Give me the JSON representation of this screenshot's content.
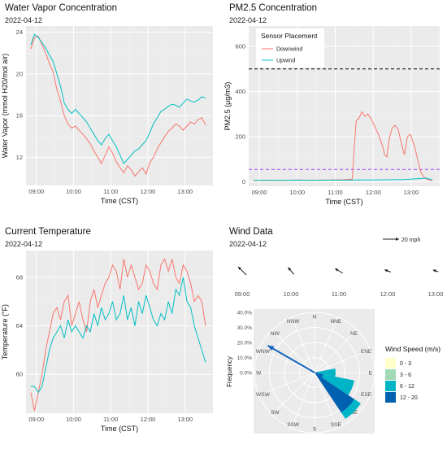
{
  "colors": {
    "downwind": "#F8766D",
    "upwind": "#00BFC4",
    "wind_arrow": "#1565C0",
    "panel_bg": "#EBEBEB",
    "grid_major": "#FFFFFF",
    "grid_minor": "#F4F4F4",
    "hline_black": "#000000",
    "hline_purple": "#A64DFF"
  },
  "chart_data": [
    {
      "id": "water",
      "type": "line",
      "title": "Water Vapor Concentration",
      "subtitle": "2022-04-12",
      "xlabel": "Time (CST)",
      "ylabel": "Water Vapor (mmol H20/mol air)",
      "x_ticks": [
        "09:00",
        "10:00",
        "11:00",
        "12:00",
        "13:00"
      ],
      "x_tick_hours": [
        9,
        10,
        11,
        12,
        13
      ],
      "xlim_hours": [
        8.72,
        13.75
      ],
      "y_ticks": [
        12,
        16,
        20,
        24
      ],
      "ylim": [
        9.3,
        24.6
      ],
      "series": [
        {
          "name": "Downwind",
          "color": "downwind",
          "x_hours": [
            8.85,
            8.95,
            9.05,
            9.15,
            9.25,
            9.35,
            9.45,
            9.55,
            9.65,
            9.75,
            9.85,
            9.95,
            10.05,
            10.15,
            10.25,
            10.35,
            10.45,
            10.55,
            10.65,
            10.75,
            10.85,
            10.95,
            11.05,
            11.15,
            11.25,
            11.35,
            11.45,
            11.55,
            11.65,
            11.75,
            11.85,
            11.95,
            12.05,
            12.15,
            12.25,
            12.35,
            12.45,
            12.55,
            12.65,
            12.75,
            12.85,
            12.95,
            13.05,
            13.15,
            13.25,
            13.35,
            13.45,
            13.55
          ],
          "values": [
            22.4,
            23.5,
            23.6,
            22.8,
            22.0,
            21.0,
            20.2,
            18.5,
            17.4,
            16.0,
            15.2,
            14.8,
            15.0,
            14.6,
            14.2,
            13.8,
            13.3,
            12.6,
            12.0,
            11.4,
            12.2,
            13.0,
            12.4,
            11.6,
            11.0,
            10.5,
            11.2,
            10.8,
            10.2,
            10.6,
            11.0,
            10.4,
            11.5,
            12.0,
            12.8,
            13.4,
            14.0,
            14.5,
            14.8,
            15.2,
            15.0,
            14.6,
            15.0,
            15.4,
            15.2,
            15.6,
            15.8,
            15.1
          ]
        },
        {
          "name": "Upwind",
          "color": "upwind",
          "x_hours": [
            8.85,
            8.95,
            9.05,
            9.15,
            9.25,
            9.35,
            9.45,
            9.55,
            9.65,
            9.75,
            9.85,
            9.95,
            10.05,
            10.15,
            10.25,
            10.35,
            10.45,
            10.55,
            10.65,
            10.75,
            10.85,
            10.95,
            11.05,
            11.15,
            11.25,
            11.35,
            11.45,
            11.55,
            11.65,
            11.75,
            11.85,
            11.95,
            12.05,
            12.15,
            12.25,
            12.35,
            12.45,
            12.55,
            12.65,
            12.75,
            12.85,
            12.95,
            13.05,
            13.15,
            13.25,
            13.35,
            13.45,
            13.55
          ],
          "values": [
            22.8,
            23.8,
            23.5,
            23.0,
            22.5,
            21.8,
            21.2,
            20.0,
            18.8,
            17.2,
            16.6,
            16.2,
            16.6,
            16.2,
            15.8,
            15.4,
            14.8,
            14.2,
            13.6,
            13.2,
            13.8,
            14.2,
            13.6,
            13.0,
            12.2,
            11.4,
            11.8,
            12.2,
            12.6,
            12.8,
            13.2,
            13.6,
            14.4,
            15.2,
            15.8,
            16.4,
            16.6,
            16.9,
            17.1,
            17.0,
            16.8,
            17.2,
            17.6,
            17.4,
            17.3,
            17.5,
            17.8,
            17.7
          ]
        }
      ]
    },
    {
      "id": "pm25",
      "type": "line",
      "title": "PM2.5 Concentration",
      "subtitle": "2022-04-12",
      "xlabel": "Time (CST)",
      "ylabel": "PM2.5 (µg/m3)",
      "x_ticks": [
        "09:00",
        "10:00",
        "11:00",
        "12:00",
        "13:00"
      ],
      "x_tick_hours": [
        9,
        10,
        11,
        12,
        13
      ],
      "xlim_hours": [
        8.72,
        13.75
      ],
      "y_ticks": [
        0,
        200,
        400,
        600
      ],
      "ylim": [
        -20,
        690
      ],
      "hlines": [
        {
          "value": 500,
          "color": "hline_black"
        },
        {
          "value": 55,
          "color": "hline_purple"
        }
      ],
      "legend": {
        "title": "Sensor Placement",
        "position": "top-left"
      },
      "series": [
        {
          "name": "Downwind",
          "color": "downwind",
          "x_hours": [
            8.85,
            9.2,
            9.6,
            10.0,
            10.4,
            10.8,
            11.2,
            11.45,
            11.5,
            11.55,
            11.62,
            11.7,
            11.78,
            11.86,
            11.94,
            12.0,
            12.08,
            12.16,
            12.24,
            12.3,
            12.36,
            12.42,
            12.5,
            12.58,
            12.66,
            12.74,
            12.82,
            12.9,
            12.98,
            13.04,
            13.1,
            13.18,
            13.26,
            13.34,
            13.42,
            13.5,
            13.56
          ],
          "values": [
            6,
            7,
            6,
            8,
            7,
            8,
            9,
            12,
            150,
            270,
            280,
            310,
            290,
            300,
            280,
            260,
            230,
            200,
            160,
            120,
            110,
            190,
            240,
            250,
            230,
            170,
            120,
            200,
            210,
            180,
            150,
            90,
            40,
            20,
            10,
            8,
            6
          ]
        },
        {
          "name": "Upwind",
          "color": "upwind",
          "x_hours": [
            8.85,
            9.2,
            9.6,
            10.0,
            10.4,
            10.8,
            11.2,
            11.6,
            12.0,
            12.4,
            12.8,
            13.2,
            13.4,
            13.56
          ],
          "values": [
            6,
            6,
            6,
            7,
            6,
            7,
            7,
            8,
            8,
            9,
            10,
            14,
            16,
            8
          ]
        }
      ]
    },
    {
      "id": "temp",
      "type": "line",
      "title": "Current Temperature",
      "subtitle": "2022-04-12",
      "xlabel": "Time (CST)",
      "ylabel": "Temperature (°F)",
      "x_ticks": [
        "09:00",
        "10:00",
        "11:00",
        "12:00",
        "13:00"
      ],
      "x_tick_hours": [
        9,
        10,
        11,
        12,
        13
      ],
      "xlim_hours": [
        8.72,
        13.75
      ],
      "y_ticks": [
        60,
        64,
        68
      ],
      "ylim": [
        56.8,
        70.2
      ],
      "series": [
        {
          "name": "Downwind",
          "color": "downwind",
          "x_hours": [
            8.85,
            8.95,
            9.05,
            9.15,
            9.25,
            9.35,
            9.45,
            9.55,
            9.65,
            9.75,
            9.85,
            9.95,
            10.05,
            10.15,
            10.25,
            10.35,
            10.45,
            10.55,
            10.65,
            10.75,
            10.85,
            10.95,
            11.05,
            11.15,
            11.25,
            11.35,
            11.45,
            11.55,
            11.65,
            11.75,
            11.85,
            11.95,
            12.05,
            12.15,
            12.25,
            12.35,
            12.45,
            12.55,
            12.65,
            12.75,
            12.85,
            12.95,
            13.05,
            13.15,
            13.25,
            13.35,
            13.45,
            13.55
          ],
          "values": [
            58.5,
            57.0,
            58.5,
            60.0,
            62.0,
            63.5,
            65.0,
            65.5,
            64.5,
            66.0,
            66.5,
            64.0,
            65.0,
            66.0,
            64.5,
            63.5,
            66.0,
            67.0,
            65.5,
            66.5,
            67.5,
            68.0,
            69.0,
            68.5,
            67.0,
            69.5,
            68.0,
            69.0,
            68.0,
            67.0,
            67.5,
            69.0,
            68.5,
            67.5,
            67.0,
            69.0,
            69.5,
            68.5,
            69.5,
            68.0,
            67.5,
            69.0,
            68.5,
            67.5,
            66.0,
            66.5,
            66.0,
            64.0
          ]
        },
        {
          "name": "Upwind",
          "color": "upwind",
          "x_hours": [
            8.85,
            8.95,
            9.05,
            9.15,
            9.25,
            9.35,
            9.45,
            9.55,
            9.65,
            9.75,
            9.85,
            9.95,
            10.05,
            10.15,
            10.25,
            10.35,
            10.45,
            10.55,
            10.65,
            10.75,
            10.85,
            10.95,
            11.05,
            11.15,
            11.25,
            11.35,
            11.45,
            11.55,
            11.65,
            11.75,
            11.85,
            11.95,
            12.05,
            12.15,
            12.25,
            12.35,
            12.45,
            12.55,
            12.65,
            12.75,
            12.85,
            12.95,
            13.05,
            13.15,
            13.25,
            13.35,
            13.45,
            13.55
          ],
          "values": [
            59.0,
            59.0,
            58.5,
            59.0,
            60.5,
            62.0,
            63.0,
            63.5,
            64.0,
            63.0,
            64.5,
            63.5,
            64.0,
            63.5,
            63.0,
            64.0,
            63.5,
            65.0,
            64.0,
            65.5,
            64.5,
            65.0,
            66.0,
            64.5,
            65.0,
            66.5,
            64.5,
            65.5,
            64.0,
            66.0,
            65.0,
            66.5,
            65.5,
            64.5,
            64.0,
            65.0,
            64.5,
            66.0,
            65.0,
            67.0,
            66.5,
            68.0,
            66.0,
            65.5,
            64.0,
            63.0,
            62.0,
            61.0
          ]
        }
      ]
    },
    {
      "id": "wind",
      "type": "other",
      "title": "Wind Data",
      "subtitle": "2022-04-12",
      "scale_label": "20 mph",
      "times": [
        "09:00",
        "10:00",
        "11:00",
        "12:00",
        "13:00"
      ],
      "arrows": [
        {
          "time": "09:00",
          "toward_deg": 315,
          "speed_mph": 14
        },
        {
          "time": "10:00",
          "toward_deg": 320,
          "speed_mph": 11
        },
        {
          "time": "11:00",
          "toward_deg": 300,
          "speed_mph": 11
        },
        {
          "time": "12:00",
          "toward_deg": 290,
          "speed_mph": 8
        },
        {
          "time": "13:00",
          "toward_deg": 290,
          "speed_mph": 7
        }
      ],
      "rose": {
        "ylabel": "Frequency",
        "directions": [
          "N",
          "NNE",
          "NE",
          "ENE",
          "E",
          "ESE",
          "SE",
          "SSE",
          "S",
          "SSW",
          "SW",
          "WSW",
          "W",
          "WNW",
          "NW",
          "NNW"
        ],
        "radial_ticks": [
          "0.0%",
          "10.0%",
          "20.0%",
          "30.0%",
          "40.0%"
        ],
        "radial_values": [
          0,
          10,
          20,
          30,
          40
        ],
        "wedges": [
          {
            "direction": "E",
            "bin": "12 - 20",
            "from": 0,
            "to": 2
          },
          {
            "direction": "E",
            "bin": "6 - 12",
            "from": 2,
            "to": 14
          },
          {
            "direction": "ESE",
            "bin": "12 - 20",
            "from": 0,
            "to": 6
          },
          {
            "direction": "ESE",
            "bin": "6 - 12",
            "from": 6,
            "to": 27
          },
          {
            "direction": "SE",
            "bin": "12 - 20",
            "from": 0,
            "to": 32
          },
          {
            "direction": "SE",
            "bin": "6 - 12",
            "from": 32,
            "to": 37
          }
        ],
        "mean_direction_arrow": {
          "toward_deg": 300,
          "magnitude_pct": 36
        }
      },
      "legend": {
        "title": "Wind Speed (m/s)",
        "bins": [
          {
            "label": "0 - 3",
            "color": "#FFFFCC"
          },
          {
            "label": "3 - 6",
            "color": "#A1DAB4"
          },
          {
            "label": "6 - 12",
            "color": "#00B4C8"
          },
          {
            "label": "12 - 20",
            "color": "#0061B0"
          }
        ]
      }
    }
  ]
}
